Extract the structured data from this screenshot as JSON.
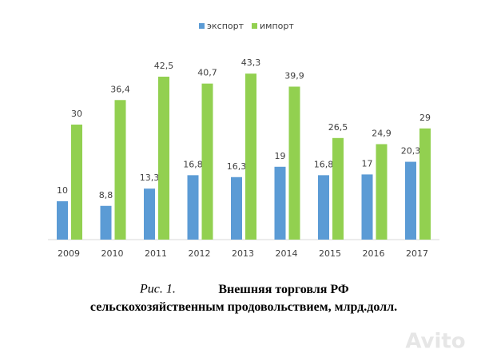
{
  "chart_data": {
    "type": "bar",
    "figure_label": "Рис. 1.",
    "title": "Внешняя торговля РФ сельскохозяйственным продовольствием, млрд.долл.",
    "watermark": "Avito",
    "categories": [
      "2009",
      "2010",
      "2011",
      "2012",
      "2013",
      "2014",
      "2015",
      "2016",
      "2017"
    ],
    "series": [
      {
        "name": "экспорт",
        "color": "#5b9bd5",
        "values": [
          10,
          8.8,
          13.3,
          16.8,
          16.3,
          19,
          16.8,
          17,
          20.3
        ],
        "value_labels": [
          "10",
          "8,8",
          "13,3",
          "16,8",
          "16,3",
          "19",
          "16,8",
          "17",
          "20,3"
        ]
      },
      {
        "name": "импорт",
        "color": "#92d050",
        "values": [
          30,
          36.4,
          42.5,
          40.7,
          43.3,
          39.9,
          26.5,
          24.9,
          29
        ],
        "value_labels": [
          "30",
          "36,4",
          "42,5",
          "40,7",
          "43,3",
          "39,9",
          "26,5",
          "24,9",
          "29"
        ]
      }
    ],
    "ylim": [
      0,
      50
    ],
    "legend": "top"
  }
}
